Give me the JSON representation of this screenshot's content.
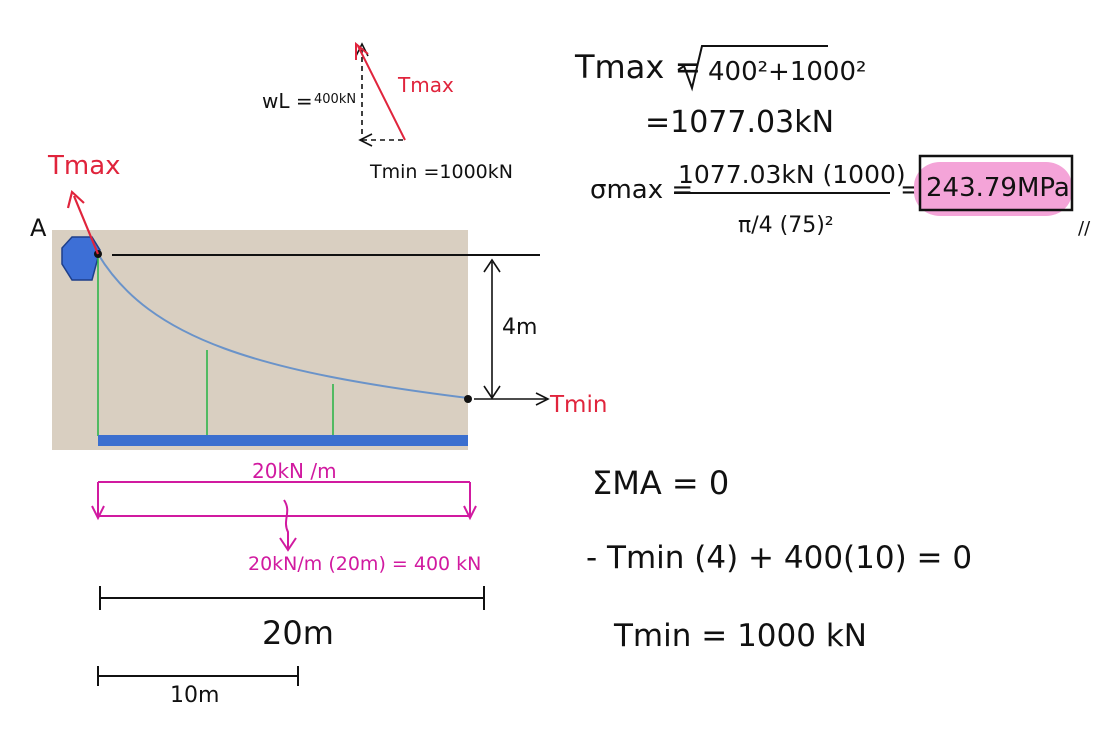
{
  "free_body": {
    "wl_label": "wL =",
    "wl_value": "400kN",
    "tmax_label": "Tmax",
    "tmin_label": "Tmin =1000kN"
  },
  "equations": {
    "tmax_lhs": "Tmax =",
    "tmax_rad": "400²+1000²",
    "tmax_result": "=1077.03kN",
    "sigma_lhs": "σmax =",
    "sigma_num": "1077.03kN (1000)",
    "sigma_den": "π/4 (75)²",
    "sigma_eq": "=",
    "sigma_result": "243.79MPa",
    "tick": "//",
    "moment_sum": "ΣMA = 0",
    "moment_eq": "- Tmin (4) + 400(10) = 0",
    "tmin_result": "Tmin = 1000 kN"
  },
  "structure": {
    "point_a": "A",
    "tmax_label": "Tmax",
    "tmin_label": "Tmin",
    "sag_label": "4m",
    "load_label": "20kN /m",
    "resultant_label": "20kN/m (20m) = 400 kN",
    "span_label": "20m",
    "half_span_label": "10m"
  },
  "colors": {
    "ink": "#111111",
    "red": "#e0243c",
    "magenta": "#d11aa0",
    "cable": "#6a93c9",
    "deck": "#3b6fcf",
    "hanger": "#2fb54a",
    "support": "#3d6fd6",
    "panel": "#d9cfc1",
    "highlight": "#f4a4d8"
  }
}
